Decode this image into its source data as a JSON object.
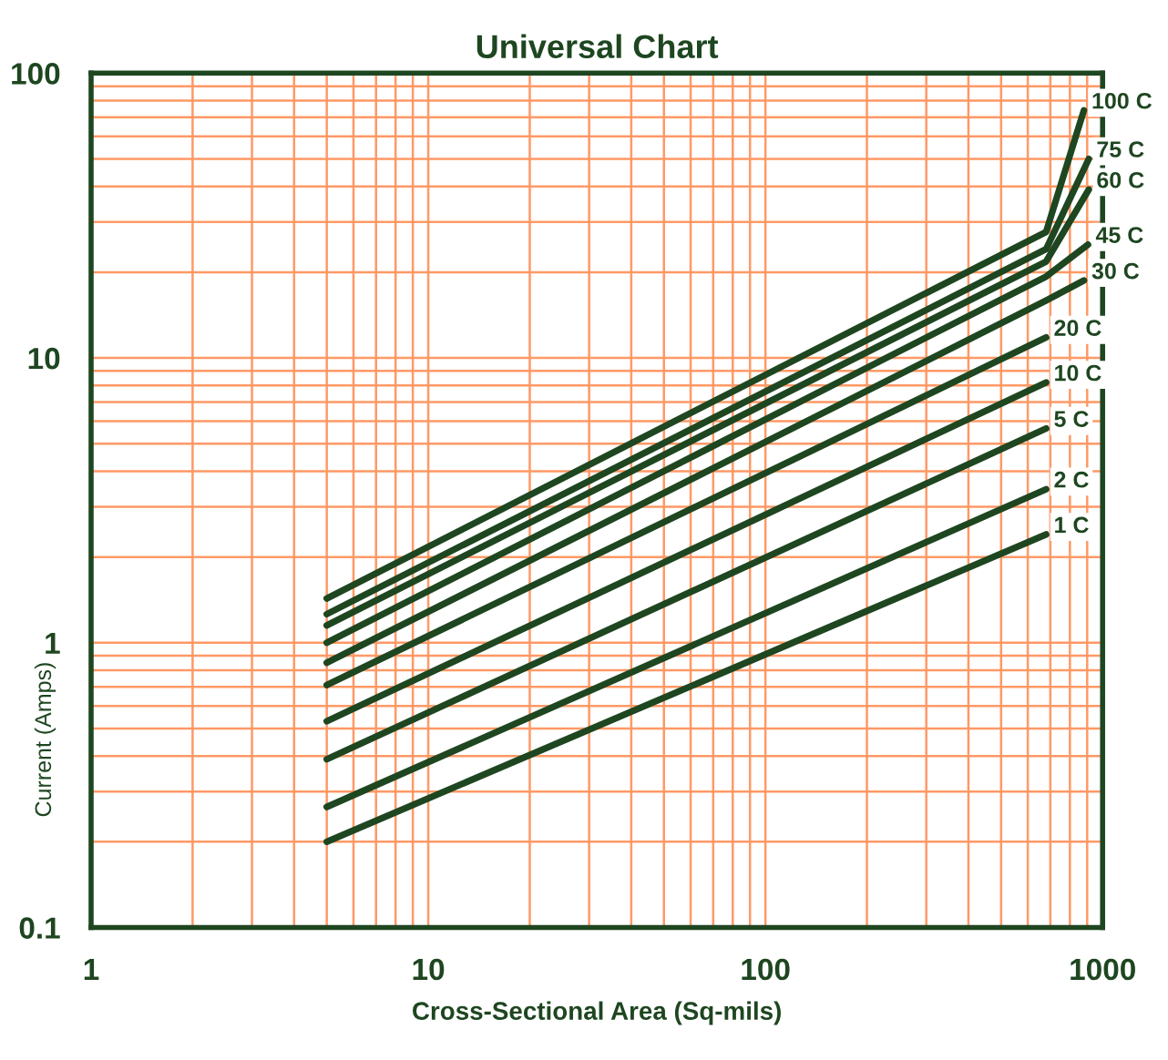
{
  "chart_data": {
    "type": "line",
    "title": "Universal Chart",
    "xlabel": "Cross-Sectional Area (Sq-mils)",
    "ylabel": "Current (Amps)",
    "log": "xy",
    "xlim": [
      1,
      1000
    ],
    "ylim": [
      0.1,
      100
    ],
    "xticks": [
      1,
      10,
      100,
      1000
    ],
    "yticks": [
      0.1,
      1,
      10,
      100
    ],
    "grid": true,
    "legend": false,
    "marker": "none",
    "line_style": "solid",
    "series": [
      {
        "name": "1 C",
        "color": "#1e4620",
        "x": [
          5,
          680
        ],
        "values": [
          0.2,
          2.4
        ]
      },
      {
        "name": "2 C",
        "color": "#1e4620",
        "x": [
          5,
          680
        ],
        "values": [
          0.265,
          3.46
        ]
      },
      {
        "name": "5 C",
        "color": "#1e4620",
        "x": [
          5,
          680
        ],
        "values": [
          0.39,
          5.65
        ]
      },
      {
        "name": "10 C",
        "color": "#1e4620",
        "x": [
          5,
          680
        ],
        "values": [
          0.53,
          8.2
        ]
      },
      {
        "name": "20 C",
        "color": "#1e4620",
        "x": [
          5,
          680
        ],
        "values": [
          0.71,
          11.8
        ]
      },
      {
        "name": "30 C",
        "color": "#1e4620",
        "x": [
          5,
          680,
          880
        ],
        "values": [
          0.85,
          15.9,
          18.7
        ]
      },
      {
        "name": "45 C",
        "color": "#1e4620",
        "x": [
          5,
          680,
          905
        ],
        "values": [
          1.0,
          19.3,
          25
        ]
      },
      {
        "name": "60 C",
        "color": "#1e4620",
        "x": [
          5,
          680,
          910
        ],
        "values": [
          1.15,
          21.8,
          39
        ]
      },
      {
        "name": "75 C",
        "color": "#1e4620",
        "x": [
          5,
          680,
          910
        ],
        "values": [
          1.26,
          24.1,
          50
        ]
      },
      {
        "name": "100 C",
        "color": "#1e4620",
        "x": [
          5,
          680,
          880
        ],
        "values": [
          1.43,
          27.7,
          74
        ]
      }
    ]
  }
}
